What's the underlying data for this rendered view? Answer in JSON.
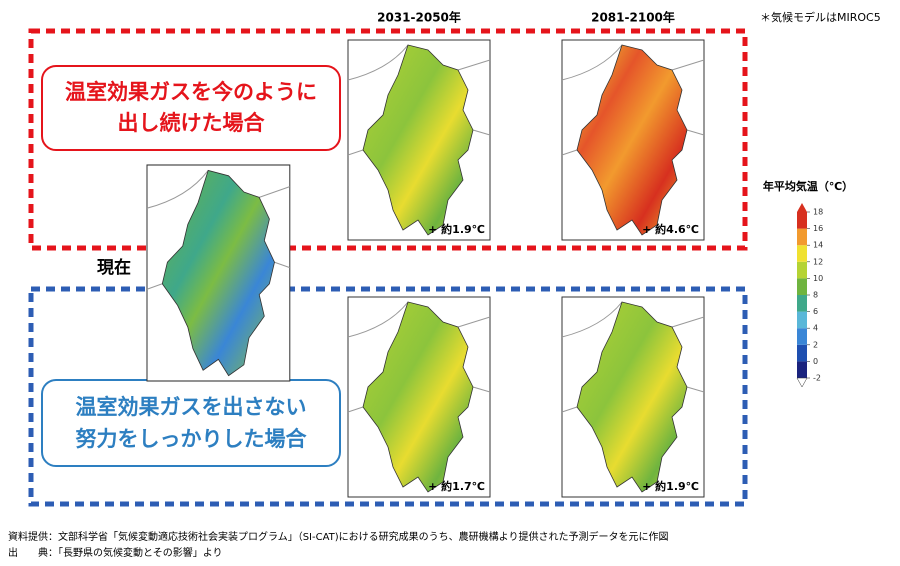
{
  "note": "＊気候モデルはMIROC5",
  "periods": [
    "2031-2050年",
    "2081-2100年"
  ],
  "current_label": "現在",
  "scenarios": [
    {
      "label_lines": [
        "温室効果ガスを今のように",
        "出し続けた場合"
      ],
      "changes": [
        "+ 約1.9℃",
        "+ 約4.6℃"
      ]
    },
    {
      "label_lines": [
        "温室効果ガスを出さない",
        "努力をしっかりした場合"
      ],
      "changes": [
        "+ 約1.7℃",
        "+ 約1.9℃"
      ]
    }
  ],
  "colorbar": {
    "title": "年平均気温（℃）",
    "ticks": [
      -2,
      0,
      2,
      4,
      6,
      8,
      10,
      12,
      14,
      16,
      18
    ],
    "colors": [
      "#1a237e",
      "#1e4fb0",
      "#3a86d6",
      "#5ab7d8",
      "#3fa88a",
      "#6fb43f",
      "#b5d334",
      "#f0e130",
      "#f29a2e",
      "#d7301f"
    ]
  },
  "footer": [
    "資料提供：文部科学省「気候変動適応技術社会実装プログラム」（SI-CAT)における研究成果のうち、農研機構より提供された予測データを元に作図",
    "出　　典：「長野県の気候変動とその影響」より"
  ]
}
